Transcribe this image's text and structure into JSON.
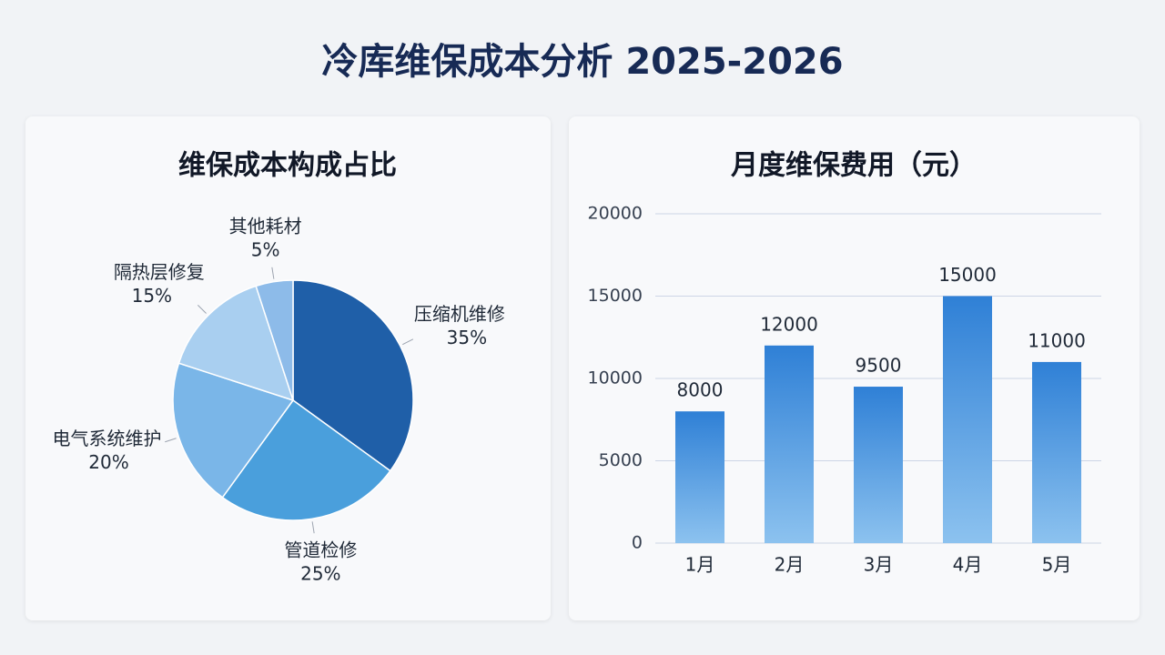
{
  "title": "冷库维保成本分析 2025-2026",
  "chart_data": [
    {
      "type": "pie",
      "title": "维保成本构成占比",
      "categories": [
        "压缩机维修",
        "管道检修",
        "电气系统维护",
        "隔热层修复",
        "其他耗材"
      ],
      "values": [
        35,
        25,
        20,
        15,
        5
      ],
      "value_labels": [
        "35%",
        "25%",
        "20%",
        "15%",
        "5%"
      ],
      "colors": [
        "#1f5fa8",
        "#4a9fdc",
        "#7ab6e8",
        "#a9cff0",
        "#8dbbe9"
      ]
    },
    {
      "type": "bar",
      "title": "月度维保费用（元）",
      "categories": [
        "1月",
        "2月",
        "3月",
        "4月",
        "5月"
      ],
      "values": [
        8000,
        12000,
        9500,
        15000,
        11000
      ],
      "color": "#2f80d6",
      "ylim": [
        0,
        20000
      ],
      "yticks": [
        0,
        5000,
        10000,
        15000,
        20000
      ],
      "grid": true
    }
  ]
}
